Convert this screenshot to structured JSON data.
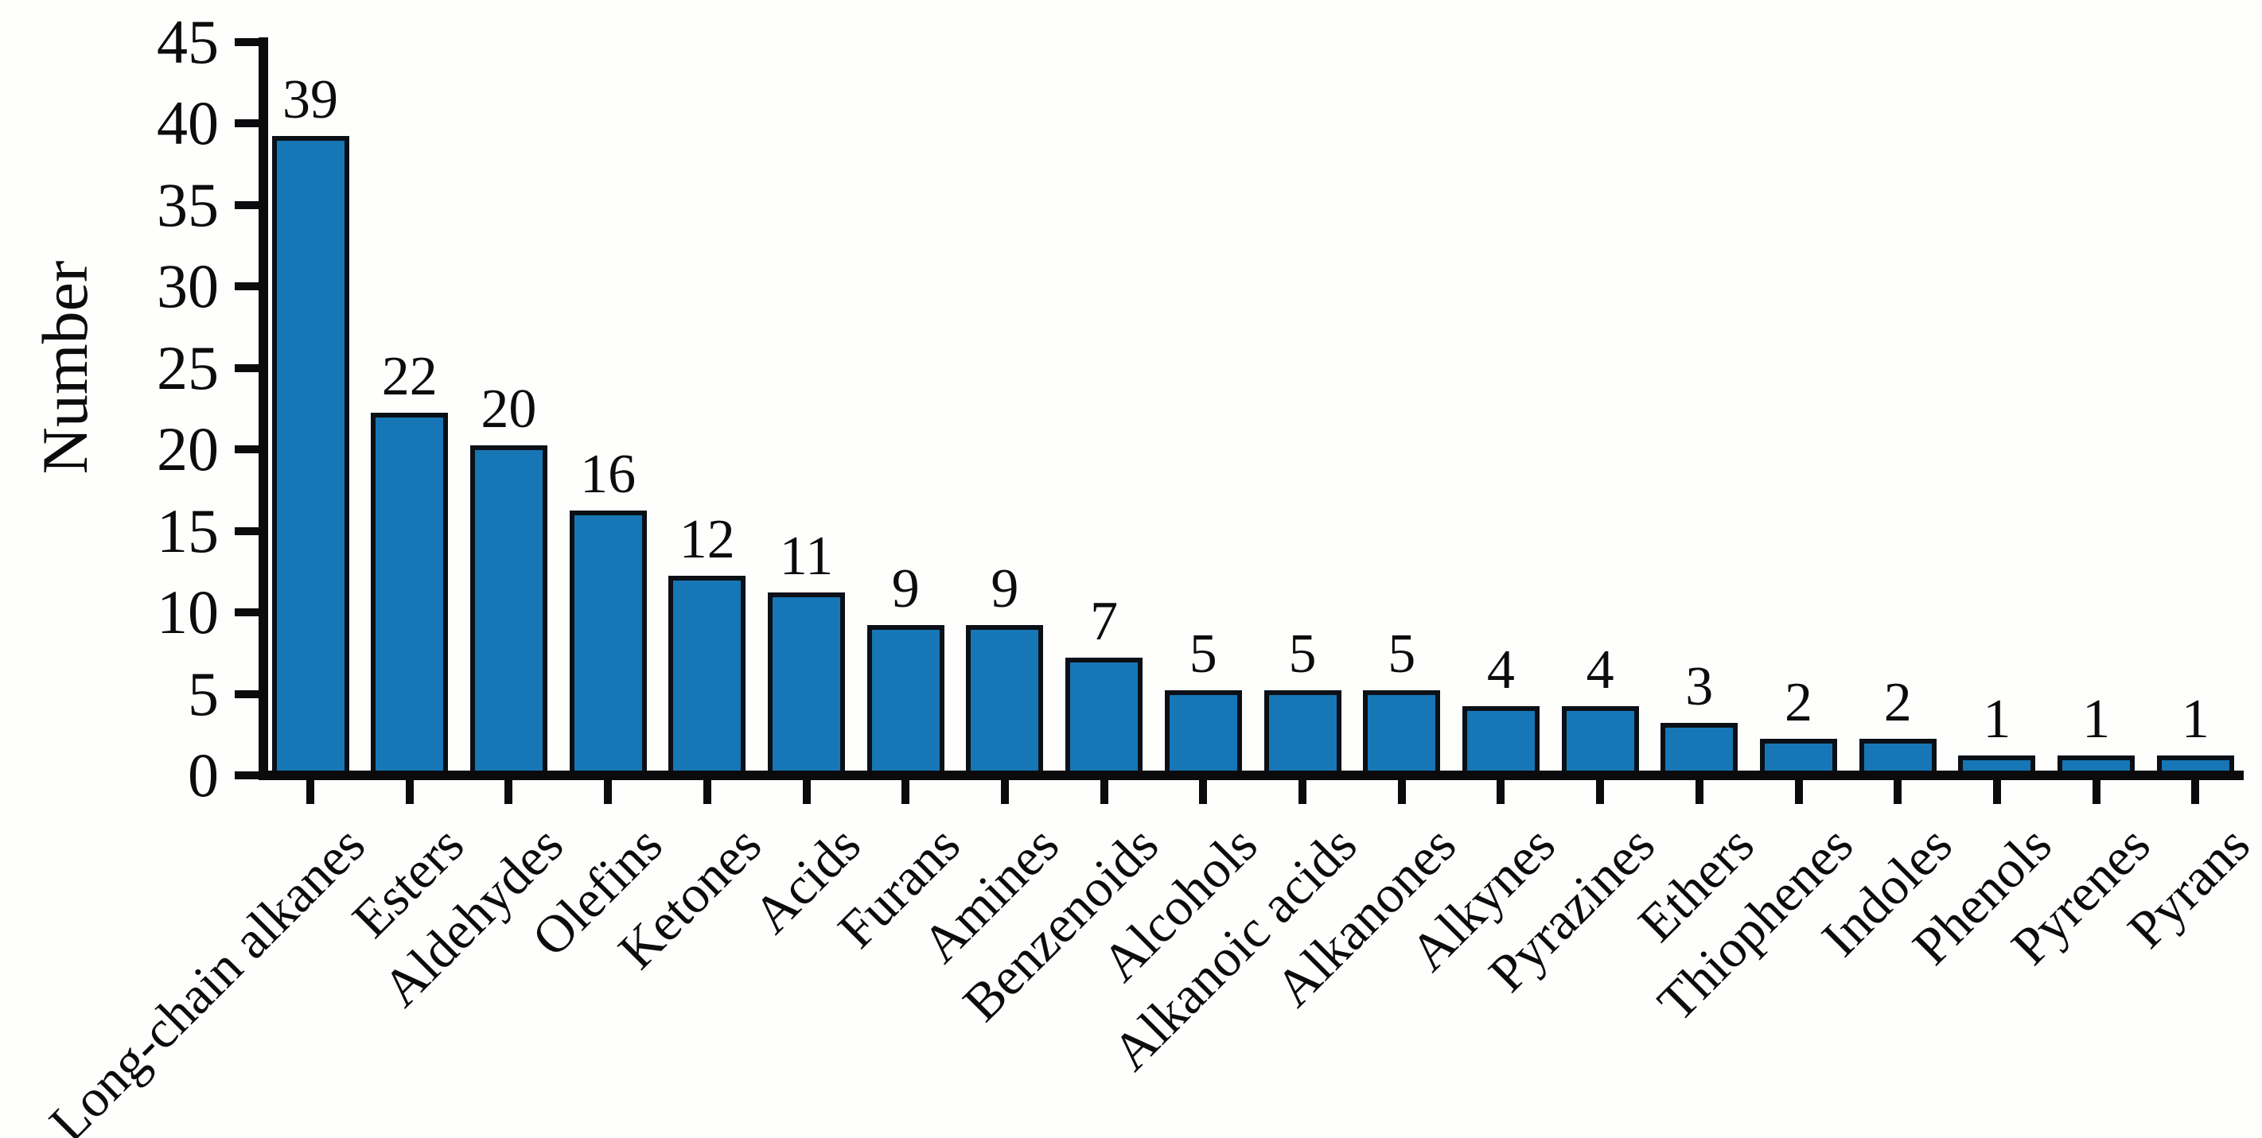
{
  "figure": {
    "background_color": "#fefefd",
    "axis_color": "#0b0b0d",
    "text_color": "#0c0c0c"
  },
  "chart_data": {
    "type": "bar",
    "title": "",
    "xlabel": "",
    "ylabel": "Number",
    "categories": [
      "Long-chain alkanes",
      "Esters",
      "Aldehydes",
      "Olefins",
      "Ketones",
      "Acids",
      "Furans",
      "Amines",
      "Benzenoids",
      "Alcohols",
      "Alkanoic acids",
      "Alkanones",
      "Alkynes",
      "Pyrazines",
      "Ethers",
      "Thiophenes",
      "Indoles",
      "Phenols",
      "Pyrenes",
      "Pyrans"
    ],
    "values": [
      39,
      22,
      20,
      16,
      12,
      11,
      9,
      9,
      7,
      5,
      5,
      5,
      4,
      4,
      3,
      2,
      2,
      1,
      1,
      1
    ],
    "value_labels_shown": true,
    "bar_color": "#1776b6",
    "bar_edge_color": "#0b1016",
    "ylim": [
      0,
      45
    ],
    "yticks": [
      0,
      5,
      10,
      15,
      20,
      25,
      30,
      35,
      40,
      45
    ],
    "grid": false,
    "legend_position": "none",
    "x_tick_label_rotation_deg": 45
  }
}
